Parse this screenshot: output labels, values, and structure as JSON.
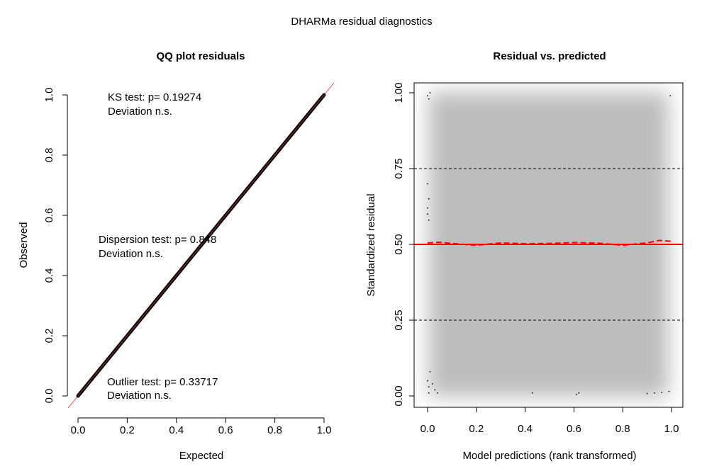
{
  "figure_title": "DHARMa residual diagnostics",
  "colors": {
    "qq_line": "#000000",
    "reference_line": "#e06060",
    "quantile_line": "#ff0000",
    "density_background": "#bdbdbd",
    "dashed_quantile": "#000000"
  },
  "chart_data": [
    {
      "type": "scatter",
      "title": "QQ plot residuals",
      "xlabel": "Expected",
      "ylabel": "Observed",
      "xlim": [
        0,
        1
      ],
      "ylim": [
        0,
        1
      ],
      "xticks": [
        "0.0",
        "0.2",
        "0.4",
        "0.6",
        "0.8",
        "1.0"
      ],
      "yticks": [
        "0.0",
        "0.2",
        "0.4",
        "0.6",
        "0.8",
        "1.0"
      ],
      "grid": false,
      "series": [
        {
          "x": [
            0,
            0.1,
            0.2,
            0.3,
            0.4,
            0.5,
            0.6,
            0.7,
            0.8,
            0.9,
            1.0
          ],
          "y": [
            0,
            0.1,
            0.2,
            0.3,
            0.4,
            0.5,
            0.6,
            0.7,
            0.8,
            0.9,
            1.0
          ]
        }
      ],
      "annotations": {
        "ks_test": "KS test: p= 0.19274",
        "ks_deviation": "Deviation  n.s.",
        "dispersion_test": "Dispersion test: p= 0.848",
        "dispersion_deviation": "Deviation  n.s.",
        "outlier_test": "Outlier test: p= 0.33717",
        "outlier_deviation": "Deviation  n.s."
      }
    },
    {
      "type": "scatter",
      "title": "Residual vs. predicted",
      "xlabel": "Model predictions (rank transformed)",
      "ylabel": "Standardized residual",
      "xlim": [
        0,
        1
      ],
      "ylim": [
        0,
        1
      ],
      "xticks": [
        "0.0",
        "0.2",
        "0.4",
        "0.6",
        "0.8",
        "1.0"
      ],
      "yticks": [
        "0.00",
        "0.25",
        "0.50",
        "0.75",
        "1.00"
      ],
      "grid": false,
      "reference_lines": [
        0.25,
        0.5,
        0.75
      ],
      "quantile_fit": {
        "x": [
          0,
          0.05,
          0.1,
          0.15,
          0.2,
          0.3,
          0.4,
          0.5,
          0.6,
          0.7,
          0.8,
          0.9,
          0.95,
          1.0
        ],
        "y": [
          0.505,
          0.507,
          0.503,
          0.5,
          0.497,
          0.505,
          0.502,
          0.503,
          0.506,
          0.504,
          0.497,
          0.505,
          0.513,
          0.51
        ]
      },
      "points": {
        "x": [
          0.0,
          0.005,
          0.01,
          0.0,
          0.005,
          0.0,
          0.005,
          0.01,
          0.02,
          0.03,
          0.04,
          0.005,
          0.0,
          0.43,
          0.61,
          0.62,
          0.9,
          0.93,
          0.96,
          0.99,
          0.995,
          0.0,
          0.005
        ],
        "y": [
          0.99,
          0.98,
          1.0,
          0.7,
          0.65,
          0.6,
          0.58,
          0.08,
          0.04,
          0.02,
          0.01,
          0.01,
          0.05,
          0.01,
          0.005,
          0.01,
          0.008,
          0.01,
          0.012,
          0.015,
          0.99,
          0.62,
          0.03
        ]
      }
    }
  ]
}
